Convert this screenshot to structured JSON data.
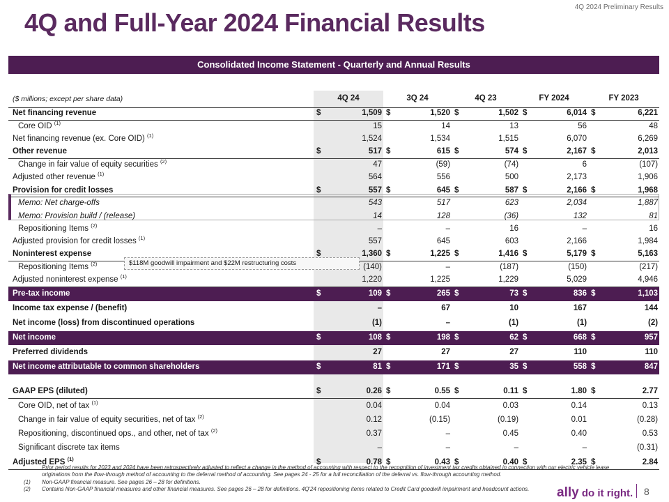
{
  "header": {
    "label": "4Q 2024 Preliminary Results",
    "title": "4Q and Full-Year 2024 Financial Results"
  },
  "section_title": "Consolidated Income Statement - Quarterly and Annual Results",
  "units_note": "($ millions; except per share data)",
  "columns": [
    "4Q 24",
    "3Q 24",
    "4Q 23",
    "FY 2024",
    "FY 2023"
  ],
  "currency_symbol": "$",
  "callout": "$118M goodwill impairment and $22M restructuring costs",
  "rows": {
    "net_financing_revenue": {
      "label": "Net financing revenue",
      "values": [
        "1,509",
        "1,520",
        "1,502",
        "6,014",
        "6,221"
      ]
    },
    "core_oid": {
      "label": "Core OID",
      "sup": "(1)",
      "values": [
        "15",
        "14",
        "13",
        "56",
        "48"
      ]
    },
    "nfr_ex_oid": {
      "label": "Net financing revenue (ex. Core OID)",
      "sup": "(1)",
      "values": [
        "1,524",
        "1,534",
        "1,515",
        "6,070",
        "6,269"
      ]
    },
    "other_revenue": {
      "label": "Other revenue",
      "values": [
        "517",
        "615",
        "574",
        "2,167",
        "2,013"
      ]
    },
    "fv_equity": {
      "label": "Change in fair value of equity securities",
      "sup": "(2)",
      "values": [
        "47",
        "(59)",
        "(74)",
        "6",
        "(107)"
      ]
    },
    "adj_other_revenue": {
      "label": "Adjusted other revenue",
      "sup": "(1)",
      "values": [
        "564",
        "556",
        "500",
        "2,173",
        "1,906"
      ]
    },
    "provision": {
      "label": "Provision for credit losses",
      "values": [
        "557",
        "645",
        "587",
        "2,166",
        "1,968"
      ]
    },
    "memo_nco": {
      "label": "Memo: Net charge-offs",
      "values": [
        "543",
        "517",
        "623",
        "2,034",
        "1,887"
      ]
    },
    "memo_build": {
      "label": "Memo: Provision build / (release)",
      "values": [
        "14",
        "128",
        "(36)",
        "132",
        "81"
      ]
    },
    "repositioning_prov": {
      "label": "Repositioning Items",
      "sup": "(2)",
      "values": [
        "–",
        "–",
        "16",
        "–",
        "16"
      ]
    },
    "adj_provision": {
      "label": "Adjusted provision for credit losses",
      "sup": "(1)",
      "values": [
        "557",
        "645",
        "603",
        "2,166",
        "1,984"
      ]
    },
    "nonint_exp": {
      "label": "Noninterest expense",
      "values": [
        "1,360",
        "1,225",
        "1,416",
        "5,179",
        "5,163"
      ]
    },
    "repositioning_exp": {
      "label": "Repositioning Items",
      "sup": "(2)",
      "values": [
        "(140)",
        "–",
        "(187)",
        "(150)",
        "(217)"
      ]
    },
    "adj_nonint_exp": {
      "label": "Adjusted noninterest expense",
      "sup": "(1)",
      "values": [
        "1,220",
        "1,225",
        "1,229",
        "5,029",
        "4,946"
      ]
    },
    "pretax_income": {
      "label": "Pre-tax income",
      "values": [
        "109",
        "265",
        "73",
        "836",
        "1,103"
      ]
    },
    "income_tax": {
      "label": "Income tax expense / (benefit)",
      "values": [
        "–",
        "67",
        "10",
        "167",
        "144"
      ]
    },
    "discontinued_ops": {
      "label": "Net income (loss) from discontinued operations",
      "values": [
        "(1)",
        "–",
        "(1)",
        "(1)",
        "(2)"
      ]
    },
    "net_income": {
      "label": "Net income",
      "values": [
        "108",
        "198",
        "62",
        "668",
        "957"
      ]
    },
    "preferred_div": {
      "label": "Preferred dividends",
      "values": [
        "27",
        "27",
        "27",
        "110",
        "110"
      ]
    },
    "ni_common": {
      "label": "Net income attributable to common shareholders",
      "values": [
        "81",
        "171",
        "35",
        "558",
        "847"
      ]
    },
    "gaap_eps": {
      "label": "GAAP EPS (diluted)",
      "values": [
        "0.26",
        "0.55",
        "0.11",
        "1.80",
        "2.77"
      ]
    },
    "core_oid_tax": {
      "label": "Core OID, net of tax",
      "sup": "(1)",
      "values": [
        "0.04",
        "0.04",
        "0.03",
        "0.14",
        "0.13"
      ]
    },
    "fv_equity_tax": {
      "label": "Change in fair value of equity securities, net of tax",
      "sup": "(2)",
      "values": [
        "0.12",
        "(0.15)",
        "(0.19)",
        "0.01",
        "(0.28)"
      ]
    },
    "repositioning_tax": {
      "label": "Repositioning, discontinued ops., and other, net of tax",
      "sup": "(2)",
      "values": [
        "0.37",
        "–",
        "0.45",
        "0.40",
        "0.53"
      ]
    },
    "discrete_tax": {
      "label": "Significant discrete tax items",
      "values": [
        "–",
        "–",
        "–",
        "–",
        "(0.31)"
      ]
    },
    "adj_eps": {
      "label": "Adjusted EPS",
      "sup": "(1)",
      "values": [
        "0.78",
        "0.43",
        "0.40",
        "2.35",
        "2.84"
      ]
    }
  },
  "footnotes": {
    "intro": "Prior period results for 2023 and 2024 have been retrospectively adjusted to reflect a change in the method of accounting with respect to the recognition of investment tax credits obtained in connection with our electric vehicle lease originations from the flow-through method of accounting to the deferral method of accounting. See pages 24 - 25 for a full reconciliation of the deferral vs. flow-through accounting method.",
    "marker1": "(1)",
    "note1": "Non-GAAP financial measure. See pages 26 – 28 for definitions.",
    "marker2": "(2)",
    "note2": "Contains Non-GAAP financial measures and other financial measures. See pages 26 – 28 for definitions. 4Q'24 repositioning items related to Credit Card goodwill impairment and headcount actions."
  },
  "logo": {
    "brand": "ally",
    "tagline": "do it right."
  },
  "page_number": "8"
}
